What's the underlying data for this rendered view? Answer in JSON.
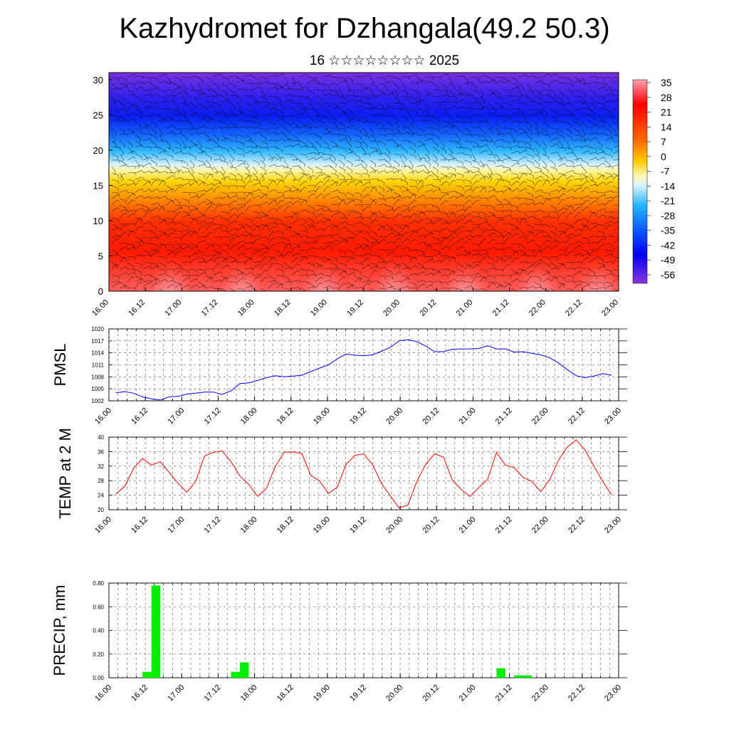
{
  "title": "Kazhydromet for Dzhangala(49.2 50.3)",
  "subtitle": "16 ☆☆☆☆☆☆☆☆ 2025",
  "colors": {
    "pmsl_line": "#0000ff",
    "temp_line": "#ff0000",
    "precip_bar": "#00ee00",
    "colorbar": [
      "#ff9aa6",
      "#ff0000",
      "#ff7a00",
      "#ffd000",
      "#fff8a0",
      "#c8eeff",
      "#20b0ff",
      "#1050ff",
      "#0000ee",
      "#7a2ae0"
    ]
  },
  "time_ticks": [
    "16.00",
    "16.12",
    "17.00",
    "17.12",
    "18.00",
    "18.12",
    "19.00",
    "19.12",
    "20.00",
    "20.12",
    "21.00",
    "21.12",
    "22.00",
    "22.12",
    "23.00"
  ],
  "chart_data": [
    {
      "type": "heatmap",
      "name": "temperature cross-section with wind barbs",
      "x_ticks": [
        "16.00",
        "16.12",
        "17.00",
        "17.12",
        "18.00",
        "18.12",
        "19.00",
        "19.12",
        "20.00",
        "20.12",
        "21.00",
        "21.12",
        "22.00",
        "22.12",
        "23.00"
      ],
      "y_ticks": [
        0,
        5,
        10,
        15,
        20,
        25,
        30
      ],
      "ylim": [
        0,
        31
      ],
      "colorbar_labels": [
        "35",
        "28",
        "21",
        "14",
        "7",
        "0",
        "-7",
        "-14",
        "-21",
        "-28",
        "-35",
        "-42",
        "-49",
        "-56"
      ]
    },
    {
      "type": "line",
      "ylabel": "PMSL",
      "ylim": [
        1002,
        1020
      ],
      "y_ticks": [
        "1020",
        "1017",
        "1014",
        "1011",
        "1008",
        "1005",
        "1002"
      ],
      "x_ticks": [
        "16.00",
        "16.12",
        "17.00",
        "17.12",
        "18.00",
        "18.12",
        "19.00",
        "19.12",
        "20.00",
        "20.12",
        "21.00",
        "21.12",
        "22.00",
        "22.12",
        "23.00"
      ],
      "x_hours": [
        0,
        3,
        6,
        9,
        12,
        15,
        18,
        21,
        24,
        27,
        30,
        33,
        36,
        39,
        42,
        45,
        48,
        51,
        54,
        57,
        60,
        63,
        66,
        69,
        72,
        75,
        78,
        81,
        84,
        87,
        90,
        93,
        96,
        99,
        102,
        105,
        108,
        111,
        114,
        117,
        120,
        123,
        126,
        129,
        132,
        135,
        138,
        141,
        144,
        147,
        150,
        153,
        156,
        159,
        162,
        165,
        168
      ],
      "values": [
        1004,
        1004.3,
        1003.9,
        1003,
        1002.5,
        1002.2,
        1003,
        1003.1,
        1003.7,
        1003.9,
        1004.2,
        1004.2,
        1003.6,
        1004.5,
        1006.3,
        1006.5,
        1007.1,
        1007.8,
        1008.3,
        1008,
        1008.2,
        1008.4,
        1009.3,
        1010.2,
        1011,
        1012.5,
        1013.7,
        1013.4,
        1013.3,
        1013.5,
        1014.4,
        1015.4,
        1017,
        1017.3,
        1016.8,
        1015.7,
        1014.3,
        1014.3,
        1014.9,
        1015,
        1015,
        1015.1,
        1015.8,
        1015,
        1015,
        1014.2,
        1014.3,
        1013.9,
        1013.5,
        1012.8,
        1011.5,
        1009.8,
        1008.3,
        1007.8,
        1008.2,
        1008.8,
        1008.4
      ]
    },
    {
      "type": "line",
      "ylabel": "TEMP at 2 M",
      "ylim": [
        20,
        40
      ],
      "y_ticks": [
        "40",
        "36",
        "32",
        "28",
        "24",
        "20"
      ],
      "x_ticks": [
        "16.00",
        "16.12",
        "17.00",
        "17.12",
        "18.00",
        "18.12",
        "19.00",
        "19.12",
        "20.00",
        "20.12",
        "21.00",
        "21.12",
        "22.00",
        "22.12",
        "23.00"
      ],
      "x_hours": [
        0,
        3,
        6,
        9,
        12,
        15,
        18,
        21,
        24,
        27,
        30,
        33,
        36,
        39,
        42,
        45,
        48,
        51,
        54,
        57,
        60,
        63,
        66,
        69,
        72,
        75,
        78,
        81,
        84,
        87,
        90,
        93,
        96,
        99,
        102,
        105,
        108,
        111,
        114,
        117,
        120,
        123,
        126,
        129,
        132,
        135,
        138,
        141,
        144,
        147,
        150,
        153,
        156,
        159,
        162,
        165,
        168
      ],
      "values": [
        24.4,
        26.5,
        31.5,
        34.1,
        32.3,
        33.2,
        30.3,
        27.3,
        24.8,
        27.8,
        34.8,
        35.8,
        36.2,
        33.2,
        29.3,
        27,
        23.7,
        25.9,
        31.9,
        35.8,
        35.9,
        35.5,
        29.5,
        27.9,
        24.5,
        26.2,
        32.5,
        35,
        35.4,
        32.4,
        27.2,
        23.8,
        20.5,
        21.3,
        27.8,
        32.5,
        35.4,
        34.5,
        28.2,
        25.6,
        23.6,
        26.1,
        28.4,
        35.8,
        32.3,
        31.6,
        28.9,
        27.8,
        25,
        28.2,
        33.6,
        37.3,
        39.2,
        36.5,
        32.1,
        27.8,
        24.1
      ]
    },
    {
      "type": "bar",
      "ylabel": "PRECIP, mm",
      "ylim": [
        0,
        0.8
      ],
      "y_ticks": [
        "0.80",
        "0.60",
        "0.40",
        "0.20",
        "0.00"
      ],
      "x_ticks": [
        "16.00",
        "16.12",
        "17.00",
        "17.12",
        "18.00",
        "18.12",
        "19.00",
        "19.12",
        "20.00",
        "20.12",
        "21.00",
        "21.12",
        "22.00",
        "22.12",
        "23.00"
      ],
      "bars": [
        {
          "start_hour": 9,
          "end_hour": 12,
          "value": 0.05
        },
        {
          "start_hour": 12,
          "end_hour": 15,
          "value": 0.78
        },
        {
          "start_hour": 39,
          "end_hour": 42,
          "value": 0.05
        },
        {
          "start_hour": 42,
          "end_hour": 45,
          "value": 0.13
        },
        {
          "start_hour": 129,
          "end_hour": 132,
          "value": 0.08
        },
        {
          "start_hour": 135,
          "end_hour": 141,
          "value": 0.02
        }
      ]
    }
  ]
}
